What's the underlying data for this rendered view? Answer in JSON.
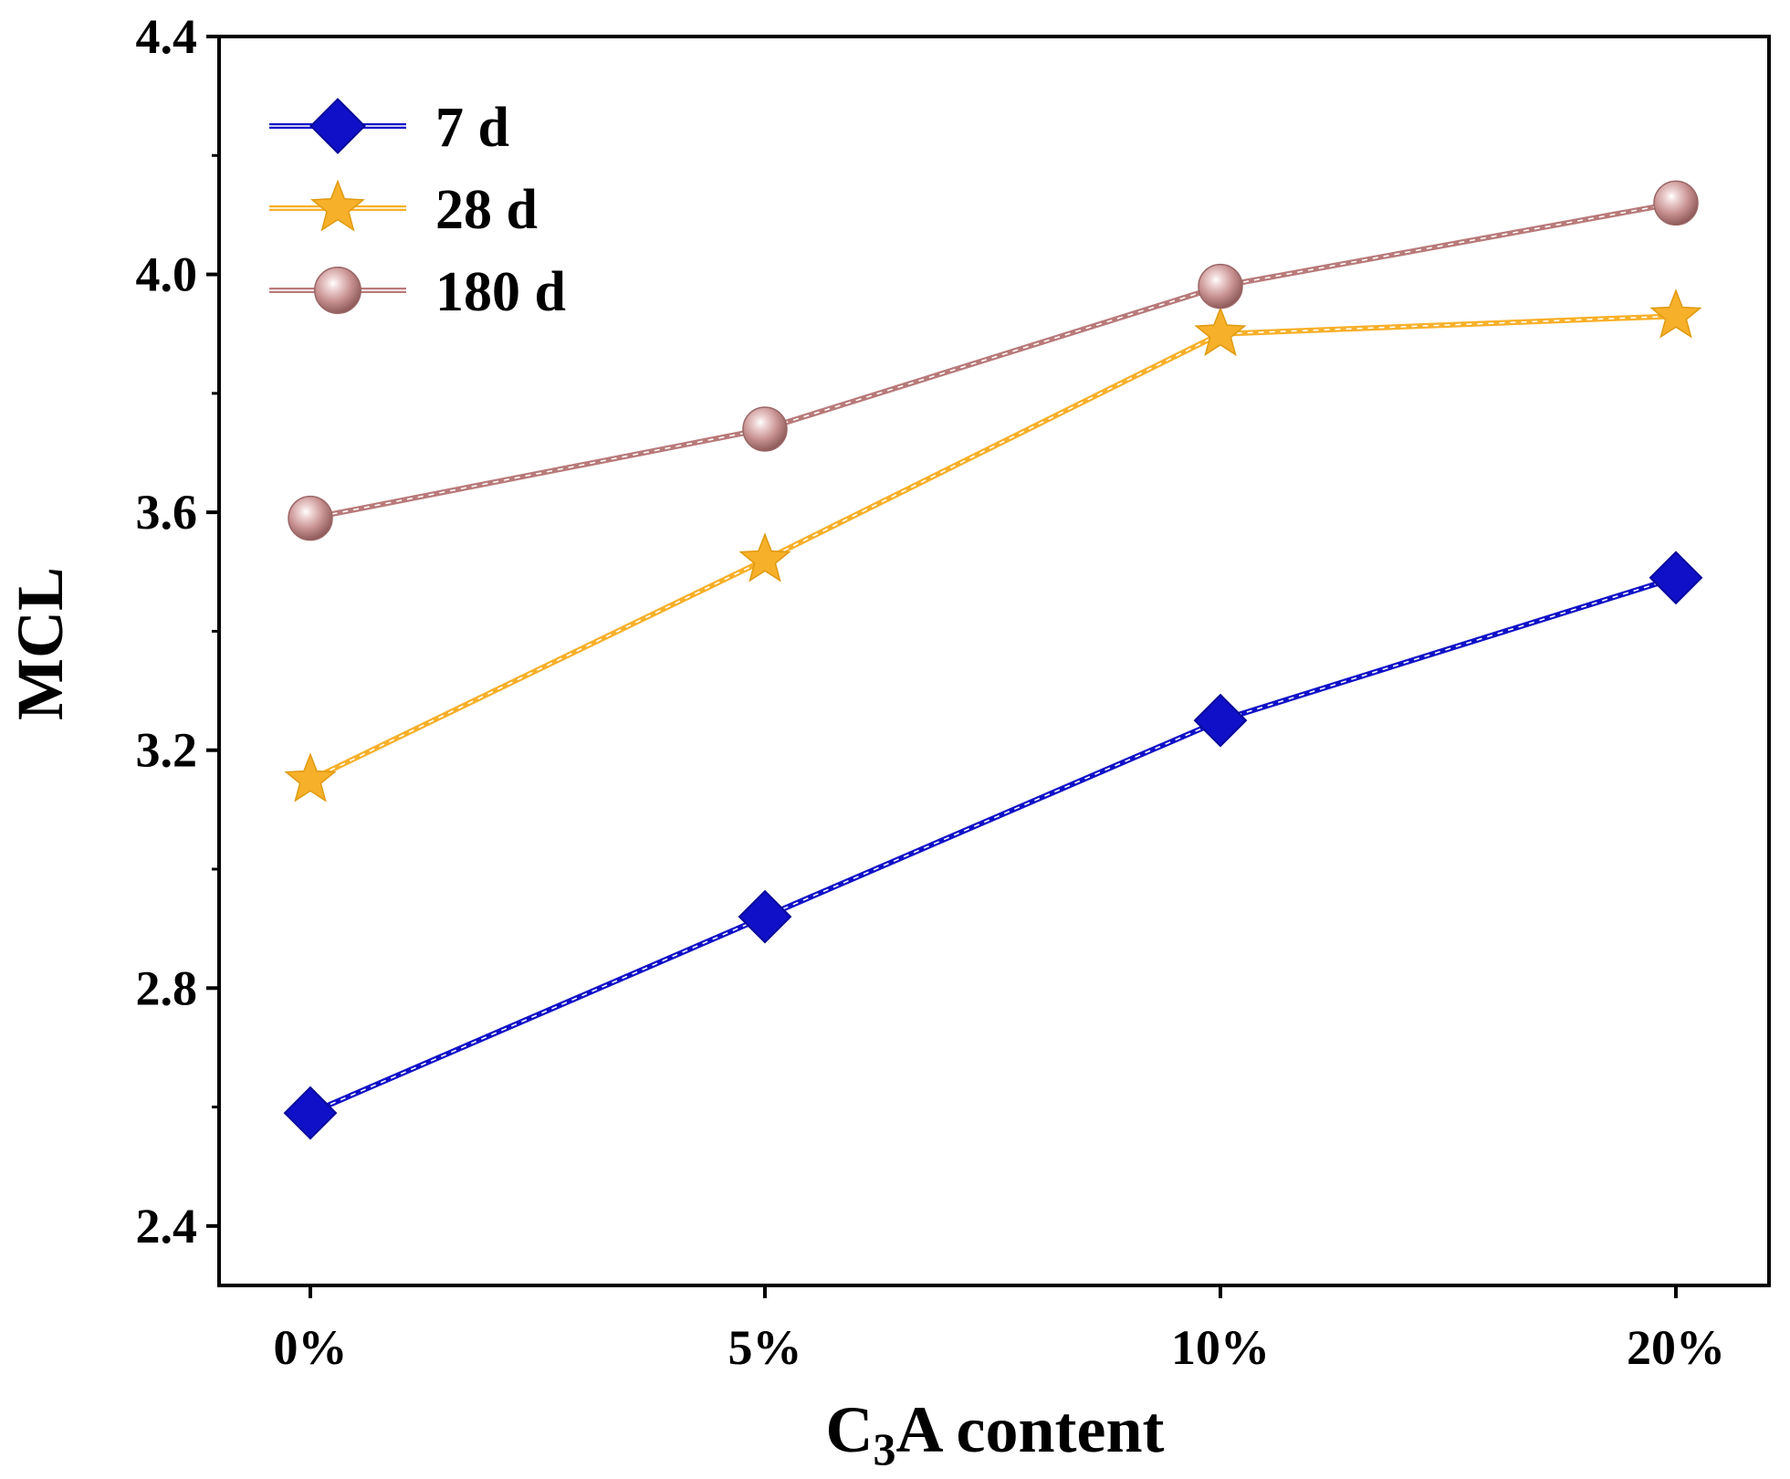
{
  "chart_data": {
    "type": "line",
    "xlabel": "C3A content",
    "xlabel_parts": {
      "pre": "C",
      "sub": "3",
      "post": "A content"
    },
    "ylabel": "MCL",
    "categories": [
      "0%",
      "5%",
      "10%",
      "20%"
    ],
    "ylim": [
      2.3,
      4.4
    ],
    "yticks": [
      "2.4",
      "2.8",
      "3.2",
      "3.6",
      "4.0",
      "4.4"
    ],
    "legend_position": "top-left",
    "series": [
      {
        "name": "7 d",
        "marker": "diamond",
        "color": "#1010c8",
        "values": [
          2.59,
          2.92,
          3.25,
          3.49
        ]
      },
      {
        "name": "28 d",
        "marker": "star",
        "color": "#f7b02a",
        "values": [
          3.15,
          3.52,
          3.9,
          3.93
        ]
      },
      {
        "name": "180 d",
        "marker": "sphere",
        "color": "#b87a7a",
        "values": [
          3.59,
          3.74,
          3.98,
          4.12
        ]
      }
    ]
  }
}
